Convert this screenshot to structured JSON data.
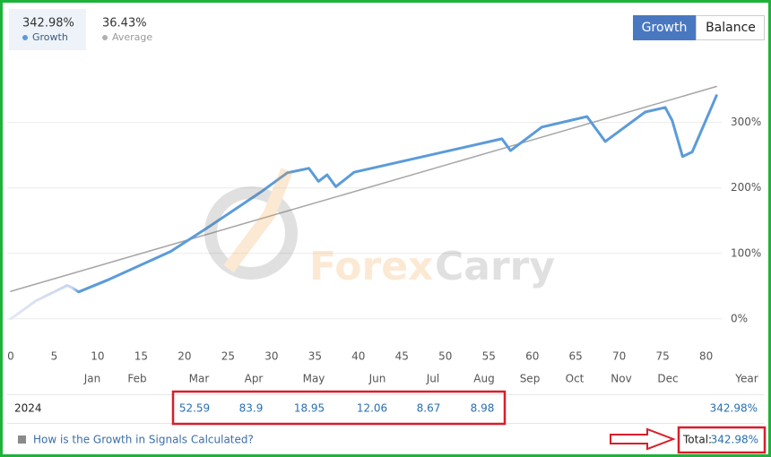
{
  "header": {
    "growth_value": "342.98%",
    "average_value": "36.43%"
  },
  "tabs": [
    "Growth",
    "Balance"
  ],
  "chart_data": {
    "type": "line",
    "series": [
      {
        "name": "Growth",
        "color": "#5b9bd9",
        "x": [
          0,
          2.9,
          6.5,
          7,
          7.8,
          11.1,
          18.4,
          22.5,
          28.7,
          31.8,
          34.3,
          35.4,
          36.4,
          37.4,
          39.5,
          56.5,
          57.5,
          61.1,
          66.3,
          68.4,
          73,
          75.3,
          76.1,
          77.3,
          78.4,
          81.2
        ],
        "values": [
          0,
          27.5,
          51,
          48,
          41,
          59,
          103,
          138,
          193,
          223,
          230,
          210,
          220,
          202,
          224,
          275,
          257,
          293,
          309,
          271,
          316,
          323,
          303,
          248,
          255,
          341
        ]
      },
      {
        "name": "Average",
        "color": "#a6a6a6",
        "x": [
          0,
          81.2
        ],
        "values": [
          42,
          355
        ]
      }
    ],
    "xlim": [
      0,
      82
    ],
    "ylim": [
      -40,
      405
    ],
    "xticks": [
      0,
      5,
      10,
      15,
      20,
      25,
      30,
      35,
      40,
      45,
      50,
      55,
      60,
      65,
      70,
      75,
      80
    ],
    "yticks": [
      {
        "value": 0,
        "label": "0%"
      },
      {
        "value": 100,
        "label": "100%"
      },
      {
        "value": 200,
        "label": "200%"
      },
      {
        "value": 300,
        "label": "300%"
      }
    ],
    "grid": true
  },
  "watermark": {
    "part1": "Forex",
    "part2": "Carry"
  },
  "table": {
    "months": [
      "Jan",
      "Feb",
      "Mar",
      "Apr",
      "May",
      "Jun",
      "Jul",
      "Aug",
      "Sep",
      "Oct",
      "Nov",
      "Dec"
    ],
    "total_header": "Year",
    "row": {
      "year": "2024",
      "values": [
        null,
        null,
        52.59,
        83.9,
        18.95,
        12.06,
        8.67,
        8.98,
        null,
        null,
        null,
        null
      ],
      "total": "342.98%"
    }
  },
  "footer": {
    "link": "How is the Growth in Signals Calculated?",
    "total_label": "Total:",
    "total_value": "342.98%"
  }
}
